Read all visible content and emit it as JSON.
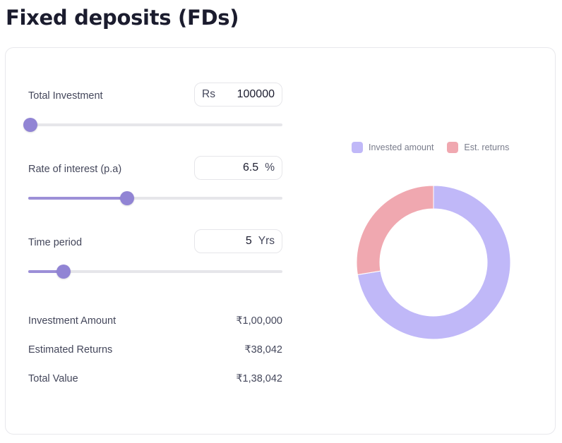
{
  "page": {
    "title": "Fixed deposits (FDs)"
  },
  "inputs": {
    "total_investment": {
      "label": "Total Investment",
      "prefix": "Rs",
      "value": "100000",
      "slider_percent": 0.8
    },
    "rate_of_interest": {
      "label": "Rate of interest (p.a)",
      "value": "6.5",
      "suffix": "%",
      "slider_percent": 39
    },
    "time_period": {
      "label": "Time period",
      "value": "5",
      "suffix": "Yrs",
      "slider_percent": 14
    }
  },
  "summary": {
    "rows": [
      {
        "label": "Investment Amount",
        "value": "₹1,00,000"
      },
      {
        "label": "Estimated Returns",
        "value": "₹38,042"
      },
      {
        "label": "Total Value",
        "value": "₹1,38,042"
      }
    ]
  },
  "legend": {
    "items": [
      {
        "label": "Invested amount",
        "color": "#c0b8f8"
      },
      {
        "label": "Est. returns",
        "color": "#f0a8b0"
      }
    ]
  },
  "colors": {
    "accent": "#9184d4",
    "invested": "#c0b8f8",
    "returns": "#f0a8b0"
  },
  "chart_data": {
    "type": "pie",
    "subtype": "donut",
    "categories": [
      "Invested amount",
      "Est. returns"
    ],
    "values": [
      100000,
      38042
    ],
    "colors": [
      "#c0b8f8",
      "#f0a8b0"
    ],
    "legend_position": "top",
    "title": ""
  }
}
